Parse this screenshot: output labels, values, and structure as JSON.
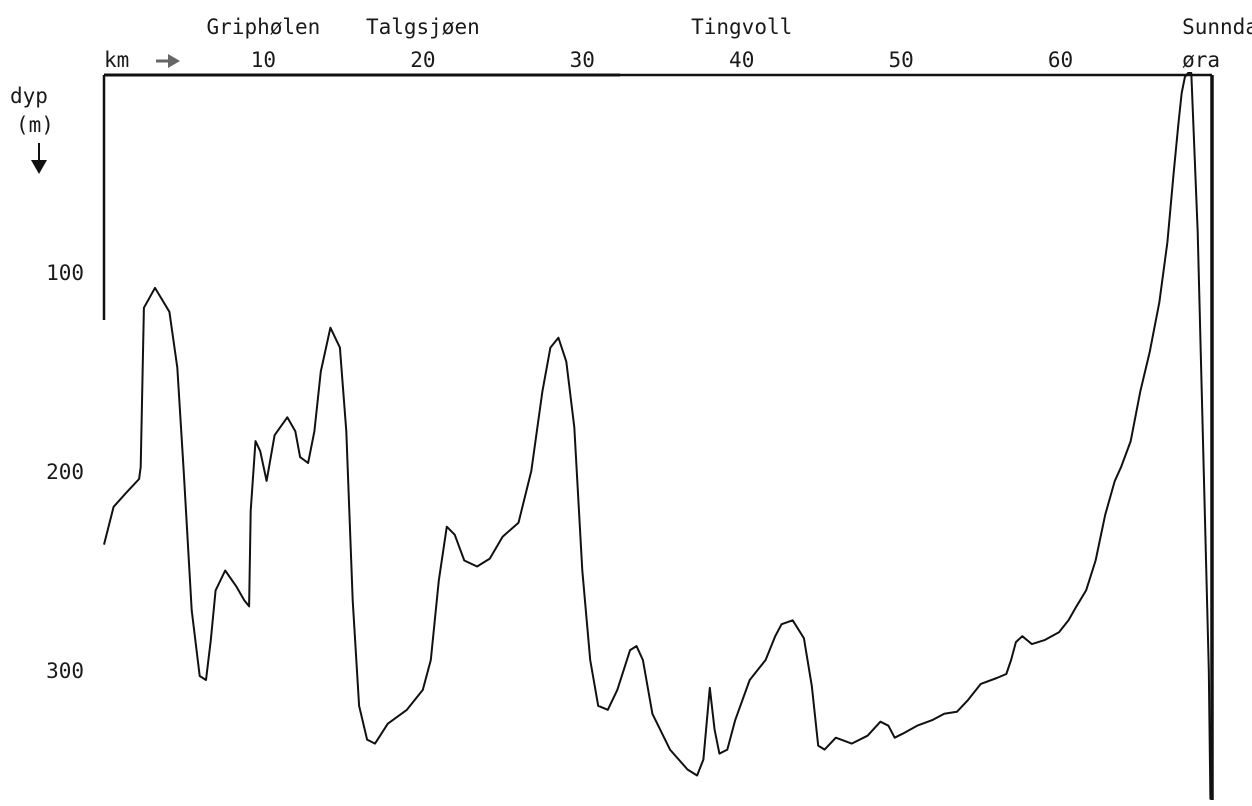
{
  "chart_data": {
    "type": "line",
    "x_unit": "km",
    "y_label": "dyp",
    "y_unit": "(m)",
    "x_ticks": [
      10,
      20,
      30,
      40,
      50,
      60
    ],
    "y_ticks": [
      100,
      200,
      300
    ],
    "xlim": [
      0,
      69.5
    ],
    "ylim": [
      0,
      365
    ],
    "y_inverted": true,
    "places": [
      {
        "label": "Griphølen",
        "x": 10
      },
      {
        "label": "Talgsjøen",
        "x": 20
      },
      {
        "label": "Tingvoll",
        "x": 40
      },
      {
        "label": "Sunndals-",
        "x": 67.5
      },
      {
        "label": "øra",
        "x": 67.5
      }
    ],
    "series": [
      {
        "x": [
          0,
          0.6,
          1.5,
          2.2,
          2.3,
          2.5,
          3.2,
          4.1,
          4.6,
          5.0,
          5.5,
          6.0,
          6.4,
          6.7,
          7.0,
          7.6,
          8.3,
          8.8,
          9.1,
          9.2,
          9.5,
          9.8,
          10.2,
          10.7,
          11.5,
          12.0,
          12.3,
          12.8,
          13.2,
          13.6,
          14.2,
          14.8,
          15.2,
          15.6,
          16.0,
          16.5,
          17.0,
          17.8,
          19.0,
          20.0,
          20.5,
          21.0,
          21.5,
          22.0,
          22.6,
          23.4,
          24.2,
          25.0,
          26.0,
          26.8,
          27.5,
          28.0,
          28.5,
          29.0,
          29.5,
          30.0,
          30.5,
          31.0,
          31.6,
          32.2,
          33.0,
          33.4,
          33.8,
          34.4,
          35.5,
          36.6,
          37.2,
          37.6,
          38.0,
          38.3,
          38.6,
          39.1,
          39.6,
          40.5,
          41.5,
          42.1,
          42.5,
          43.2,
          43.9,
          44.4,
          44.8,
          45.2,
          45.9,
          46.9,
          47.9,
          48.7,
          49.2,
          49.6,
          50.1,
          51.0,
          52.0,
          52.7,
          53.5,
          54.2,
          55.0,
          56.0,
          56.6,
          56.9,
          57.2,
          57.6,
          58.2,
          59.0,
          59.9,
          60.5,
          61.0,
          61.6,
          62.2,
          62.8,
          63.4,
          63.8,
          64.4,
          65.0,
          65.6,
          66.2,
          66.7,
          67.1,
          67.4,
          67.6,
          67.8,
          68.0,
          68.2,
          68.6,
          69.3,
          69.4
        ],
        "y": [
          237,
          218,
          210,
          204,
          198,
          118,
          108,
          120,
          148,
          200,
          270,
          303,
          305,
          285,
          260,
          250,
          258,
          265,
          268,
          220,
          185,
          190,
          205,
          182,
          173,
          180,
          193,
          196,
          180,
          150,
          128,
          138,
          180,
          265,
          318,
          335,
          337,
          327,
          320,
          310,
          295,
          255,
          228,
          232,
          245,
          248,
          244,
          233,
          226,
          200,
          160,
          138,
          133,
          145,
          178,
          250,
          295,
          318,
          320,
          310,
          290,
          288,
          295,
          322,
          340,
          350,
          353,
          345,
          309,
          330,
          342,
          340,
          325,
          305,
          295,
          283,
          277,
          275,
          284,
          308,
          338,
          340,
          334,
          337,
          333,
          326,
          328,
          334,
          332,
          328,
          325,
          322,
          321,
          315,
          307,
          304,
          302,
          295,
          286,
          283,
          287,
          285,
          281,
          275,
          268,
          260,
          245,
          222,
          205,
          198,
          185,
          160,
          140,
          115,
          85,
          50,
          25,
          10,
          2,
          0,
          0,
          80,
          300,
          365
        ]
      }
    ]
  }
}
